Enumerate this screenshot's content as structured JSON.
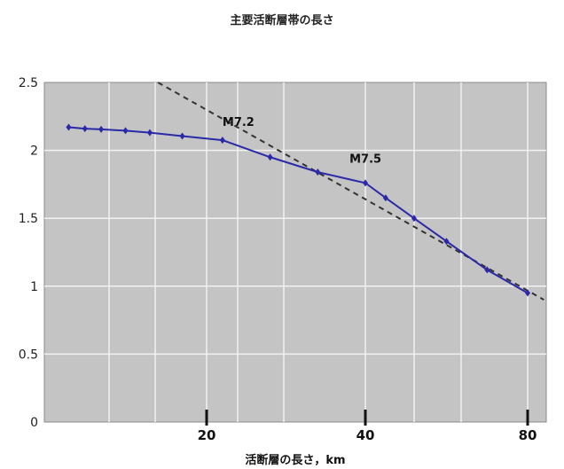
{
  "chart_data": {
    "type": "line",
    "title": "主要活断層帯の長さ",
    "xlabel": "活断層の長さ，km",
    "ylabel": "",
    "x_ticks": [
      20,
      40,
      80
    ],
    "y_ticks": [
      "0",
      "0.5",
      "1",
      "1.5",
      "2",
      "2.5"
    ],
    "ylim": [
      0,
      2.5
    ],
    "grid": true,
    "series": [
      {
        "name": "",
        "color": "#2a2aa8",
        "points": [
          {
            "x": 3,
            "y": 2.17
          },
          {
            "x": 5,
            "y": 2.16
          },
          {
            "x": 7,
            "y": 2.155
          },
          {
            "x": 10,
            "y": 2.145
          },
          {
            "x": 13,
            "y": 2.13
          },
          {
            "x": 17,
            "y": 2.105
          },
          {
            "x": 22,
            "y": 2.075
          },
          {
            "x": 28,
            "y": 1.95
          },
          {
            "x": 34,
            "y": 1.84
          },
          {
            "x": 40,
            "y": 1.76
          },
          {
            "x": 45,
            "y": 1.65
          },
          {
            "x": 52,
            "y": 1.5
          },
          {
            "x": 60,
            "y": 1.33
          },
          {
            "x": 70,
            "y": 1.12
          },
          {
            "x": 80,
            "y": 0.95
          }
        ]
      }
    ],
    "trend_line": {
      "color": "#333333",
      "style": "dashed",
      "points": [
        {
          "x": 14,
          "y": 2.5
        },
        {
          "x": 84,
          "y": 0.9
        }
      ]
    },
    "annotations": [
      {
        "text": "M7.2",
        "x": 22,
        "y": 2.18
      },
      {
        "text": "M7.5",
        "x": 38,
        "y": 1.91
      }
    ]
  }
}
